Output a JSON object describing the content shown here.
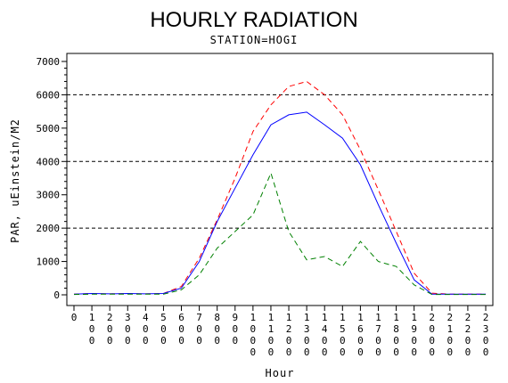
{
  "chart_data": {
    "type": "line",
    "title": "HOURLY RADIATION",
    "subtitle": "STATION=HOGI",
    "xlabel": "Hour",
    "ylabel": "PAR, uEinstein/M2",
    "ylim": [
      0,
      7000
    ],
    "yticks": [
      0,
      1000,
      2000,
      3000,
      4000,
      5000,
      6000,
      7000
    ],
    "xlim": [
      0,
      2300
    ],
    "xticks": [
      "0",
      "100",
      "200",
      "300",
      "400",
      "500",
      "600",
      "700",
      "800",
      "900",
      "1000",
      "1100",
      "1200",
      "1300",
      "1400",
      "1500",
      "1600",
      "1700",
      "1800",
      "1900",
      "2000",
      "2100",
      "2200",
      "2300"
    ],
    "grid_y_dashed": [
      2000,
      4000,
      6000
    ],
    "x": [
      0,
      100,
      200,
      300,
      400,
      500,
      600,
      700,
      800,
      900,
      1000,
      1100,
      1200,
      1300,
      1400,
      1500,
      1600,
      1700,
      1800,
      1900,
      2000,
      2100,
      2200,
      2300
    ],
    "series": [
      {
        "color": "#ff0000",
        "dash": "dashed",
        "values": [
          20,
          40,
          30,
          40,
          30,
          40,
          250,
          1100,
          2250,
          3500,
          4900,
          5700,
          6250,
          6400,
          6000,
          5400,
          4350,
          3150,
          1900,
          650,
          50,
          20,
          20,
          20
        ]
      },
      {
        "color": "#0000ff",
        "dash": "solid",
        "values": [
          20,
          40,
          30,
          40,
          30,
          40,
          200,
          1000,
          2200,
          3200,
          4200,
          5100,
          5400,
          5480,
          5100,
          4700,
          3900,
          2700,
          1550,
          450,
          20,
          20,
          20,
          20
        ]
      },
      {
        "color": "#008000",
        "dash": "dashed",
        "values": [
          10,
          20,
          20,
          20,
          20,
          20,
          150,
          600,
          1400,
          1900,
          2400,
          3650,
          1900,
          1050,
          1150,
          850,
          1600,
          1000,
          850,
          300,
          10,
          10,
          10,
          10
        ]
      }
    ]
  }
}
